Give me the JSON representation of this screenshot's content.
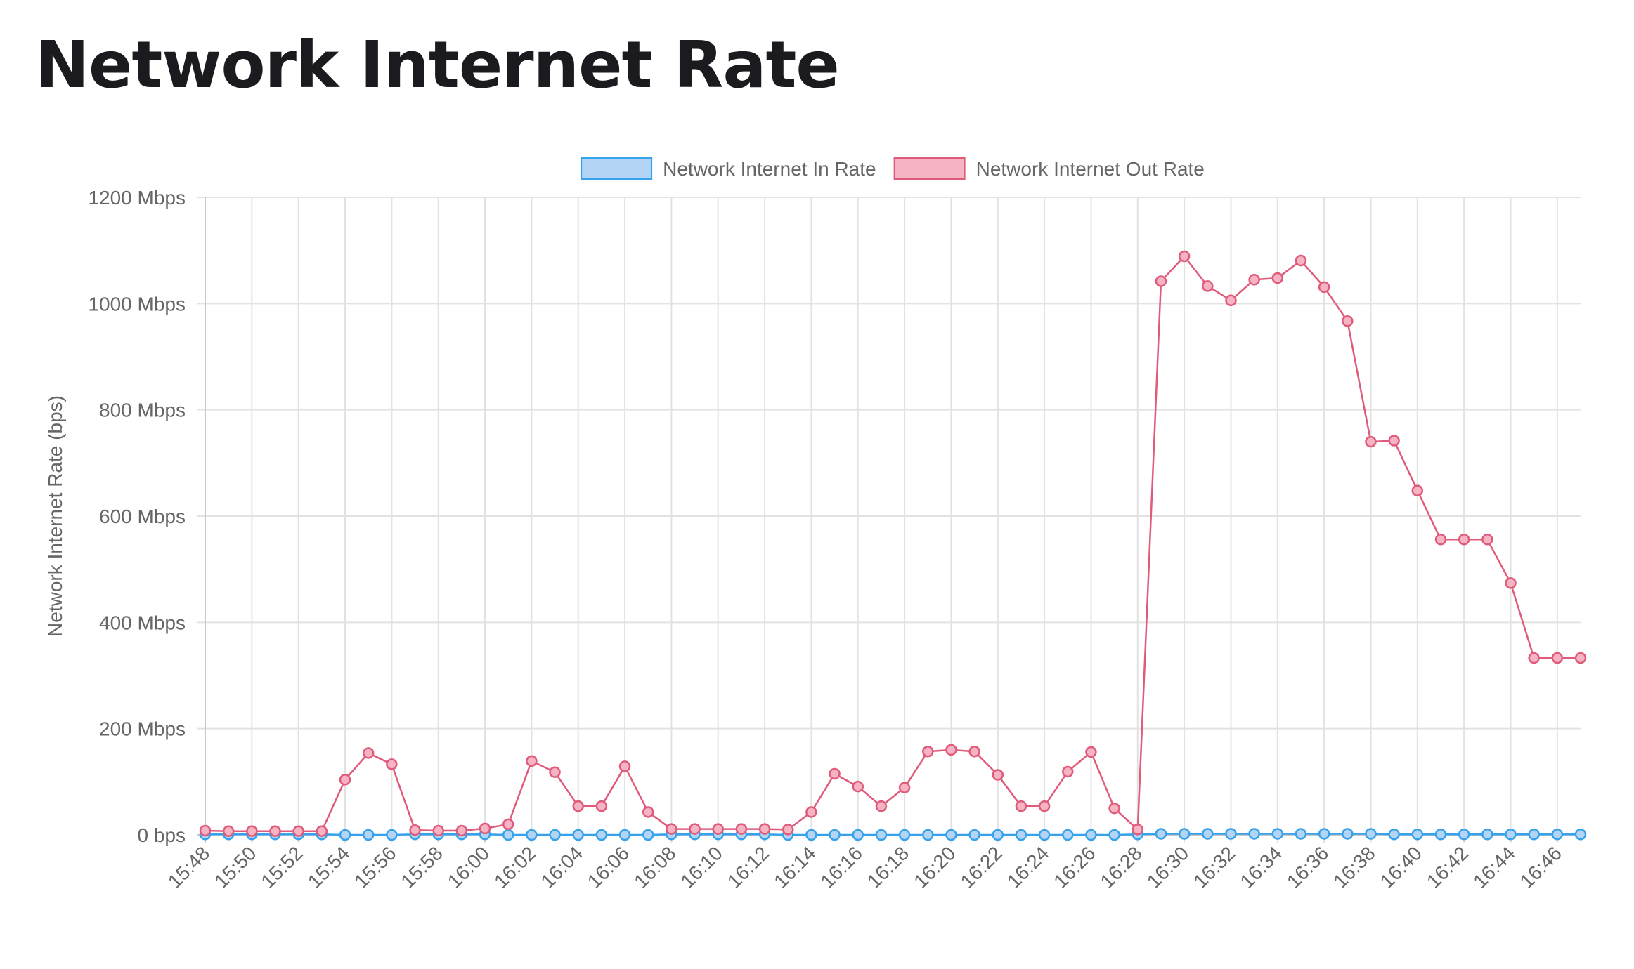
{
  "page": {
    "title": "Network Internet Rate"
  },
  "chart_data": {
    "type": "line",
    "title": "",
    "xlabel": "",
    "ylabel": "Network Internet Rate (bps)",
    "y_unit": "Mbps",
    "ylim": [
      0,
      1200
    ],
    "yticks": [
      0,
      200,
      400,
      600,
      800,
      1000,
      1200
    ],
    "ytick_labels": [
      "0 bps",
      "200 Mbps",
      "400 Mbps",
      "600 Mbps",
      "800 Mbps",
      "1000 Mbps",
      "1200 Mbps"
    ],
    "grid": true,
    "legend": "top-center",
    "categories": [
      "15:48",
      "15:49",
      "15:50",
      "15:51",
      "15:52",
      "15:53",
      "15:54",
      "15:55",
      "15:56",
      "15:57",
      "15:58",
      "15:59",
      "16:00",
      "16:01",
      "16:02",
      "16:03",
      "16:04",
      "16:05",
      "16:06",
      "16:07",
      "16:08",
      "16:09",
      "16:10",
      "16:11",
      "16:12",
      "16:13",
      "16:14",
      "16:15",
      "16:16",
      "16:17",
      "16:18",
      "16:19",
      "16:20",
      "16:21",
      "16:22",
      "16:23",
      "16:24",
      "16:25",
      "16:26",
      "16:27",
      "16:28",
      "16:29",
      "16:30",
      "16:31",
      "16:32",
      "16:33",
      "16:34",
      "16:35",
      "16:36",
      "16:37",
      "16:38",
      "16:39",
      "16:40",
      "16:41",
      "16:42",
      "16:43",
      "16:44",
      "16:45",
      "16:46",
      "16:47"
    ],
    "xtick_labels": [
      "15:48",
      "15:50",
      "15:52",
      "15:54",
      "15:56",
      "15:58",
      "16:00",
      "16:02",
      "16:04",
      "16:06",
      "16:08",
      "16:10",
      "16:12",
      "16:14",
      "16:16",
      "16:18",
      "16:20",
      "16:22",
      "16:24",
      "16:26",
      "16:28",
      "16:30",
      "16:32",
      "16:34",
      "16:36",
      "16:38",
      "16:40",
      "16:42",
      "16:44",
      "16:46"
    ],
    "series": [
      {
        "name": "Network Internet In Rate",
        "color": "#36a2eb",
        "fill": "#b3d4f5",
        "values": [
          1,
          1,
          1,
          1,
          1,
          1,
          0,
          0,
          0,
          1,
          1,
          1,
          1,
          0,
          0,
          0,
          0,
          0,
          0,
          0,
          1,
          1,
          1,
          1,
          1,
          0,
          0,
          0,
          0,
          0,
          0,
          0,
          0,
          0,
          0,
          0,
          0,
          0,
          0,
          0,
          1,
          2,
          2,
          2,
          2,
          2,
          2,
          2,
          2,
          2,
          2,
          1,
          1,
          1,
          1,
          1,
          1,
          1,
          1,
          1
        ]
      },
      {
        "name": "Network Internet Out Rate",
        "color": "#e05a7a",
        "fill": "#f5b3c3",
        "values": [
          8,
          7,
          7,
          7,
          7,
          7,
          104,
          154,
          133,
          9,
          8,
          8,
          12,
          20,
          139,
          118,
          54,
          54,
          129,
          43,
          11,
          11,
          11,
          11,
          11,
          10,
          43,
          115,
          91,
          54,
          89,
          157,
          160,
          157,
          113,
          54,
          54,
          119,
          156,
          50,
          10,
          1042,
          1089,
          1033,
          1006,
          1045,
          1048,
          1081,
          1031,
          967,
          740,
          742,
          648,
          556,
          556,
          556,
          474,
          333,
          333,
          333
        ]
      }
    ]
  }
}
